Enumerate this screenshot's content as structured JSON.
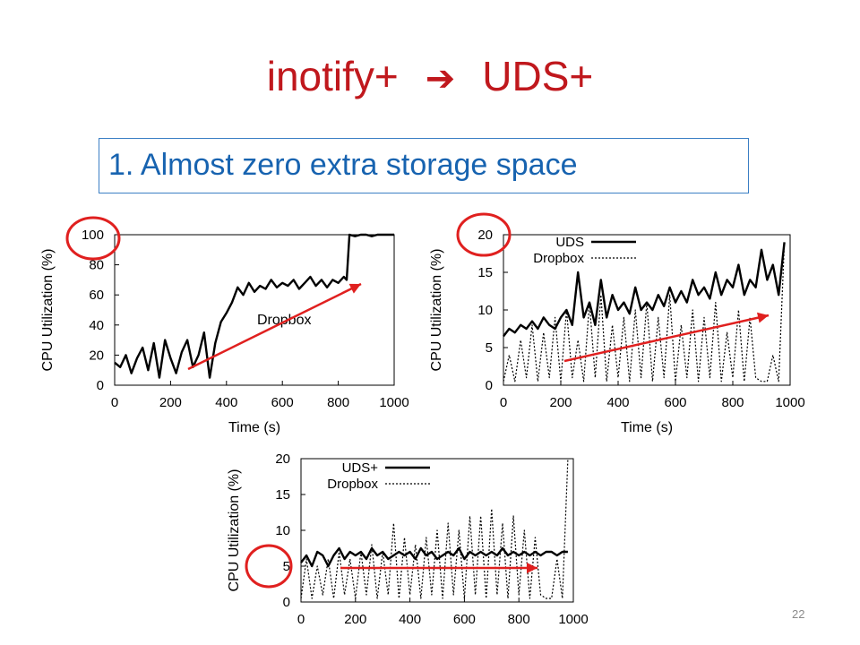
{
  "slide": {
    "title_left": "inotify+",
    "title_arrow": "➔",
    "title_right": "UDS+",
    "point": "1. Almost zero extra storage space",
    "slide_number": "22"
  },
  "colors": {
    "title": "#c0181d",
    "point_text": "#1763b0",
    "box_border": "#3b7fc4",
    "annotation": "#e0201f"
  },
  "chart_data": [
    {
      "type": "line",
      "xlabel": "Time (s)",
      "ylabel": "CPU Utilization (%)",
      "xlim": [
        0,
        1000
      ],
      "ylim": [
        0,
        100
      ],
      "xticks": [
        "0",
        "200",
        "400",
        "600",
        "800",
        "1000"
      ],
      "yticks": [
        "0",
        "20",
        "40",
        "60",
        "80",
        "100"
      ],
      "grid": false,
      "annotation": "Dropbox",
      "highlight": "100",
      "series": [
        {
          "name": "",
          "style": "solid",
          "x": [
            0,
            20,
            40,
            60,
            80,
            100,
            120,
            140,
            160,
            180,
            200,
            220,
            240,
            260,
            280,
            300,
            320,
            340,
            360,
            380,
            400,
            420,
            440,
            460,
            480,
            500,
            520,
            540,
            560,
            580,
            600,
            620,
            640,
            660,
            680,
            700,
            720,
            740,
            760,
            780,
            800,
            820,
            830,
            840,
            860,
            880,
            900,
            920,
            940,
            960,
            980,
            1000
          ],
          "y": [
            15,
            12,
            20,
            8,
            18,
            25,
            10,
            28,
            5,
            30,
            18,
            8,
            22,
            30,
            12,
            20,
            35,
            5,
            28,
            42,
            48,
            55,
            65,
            60,
            68,
            62,
            66,
            64,
            70,
            65,
            68,
            66,
            70,
            64,
            68,
            72,
            66,
            70,
            65,
            70,
            68,
            72,
            70,
            100,
            99,
            100,
            100,
            99,
            100,
            100,
            100,
            100
          ]
        }
      ]
    },
    {
      "type": "line",
      "xlabel": "Time (s)",
      "ylabel": "CPU Utilization (%)",
      "xlim": [
        0,
        1000
      ],
      "ylim": [
        0,
        20
      ],
      "xticks": [
        "0",
        "200",
        "400",
        "600",
        "800",
        "1000"
      ],
      "yticks": [
        "0",
        "5",
        "10",
        "15",
        "20"
      ],
      "grid": false,
      "legend_position": "top-left",
      "highlight": "20",
      "series": [
        {
          "name": "UDS",
          "style": "solid",
          "x": [
            0,
            20,
            40,
            60,
            80,
            100,
            120,
            140,
            160,
            180,
            200,
            220,
            240,
            260,
            280,
            300,
            320,
            340,
            360,
            380,
            400,
            420,
            440,
            460,
            480,
            500,
            520,
            540,
            560,
            580,
            600,
            620,
            640,
            660,
            680,
            700,
            720,
            740,
            760,
            780,
            800,
            820,
            840,
            860,
            880,
            900,
            920,
            940,
            960,
            980
          ],
          "y": [
            6.5,
            7.5,
            7,
            8,
            7.5,
            8.5,
            7.5,
            9,
            8,
            7.5,
            9,
            10,
            8,
            15,
            9,
            11,
            8,
            14,
            9,
            12,
            10,
            11,
            9.5,
            13,
            10,
            11,
            10,
            12,
            10.5,
            13,
            11,
            12.5,
            11,
            14,
            12,
            13,
            11.5,
            15,
            12,
            14,
            13,
            16,
            12,
            14,
            13,
            18,
            14,
            16,
            12,
            19
          ]
        },
        {
          "name": "Dropbox",
          "style": "dotted",
          "x": [
            0,
            20,
            40,
            60,
            80,
            100,
            120,
            140,
            160,
            180,
            200,
            220,
            240,
            260,
            280,
            300,
            320,
            340,
            360,
            380,
            400,
            420,
            440,
            460,
            480,
            500,
            520,
            540,
            560,
            580,
            600,
            620,
            640,
            660,
            680,
            700,
            720,
            740,
            760,
            780,
            800,
            820,
            840,
            860,
            880,
            900,
            920,
            940,
            960,
            980
          ],
          "y": [
            0.5,
            4,
            0.5,
            6,
            1,
            8,
            0.5,
            7,
            1,
            9,
            0.5,
            10,
            1,
            6,
            0.5,
            11,
            1,
            12,
            0.5,
            8,
            1,
            9,
            0.5,
            10,
            1,
            11,
            0.5,
            9,
            1,
            12,
            0.5,
            8,
            1,
            10,
            0.5,
            9,
            1,
            11,
            0.5,
            7,
            1,
            10,
            0.5,
            9,
            1,
            0.5,
            0.5,
            4,
            0.5,
            19
          ]
        }
      ]
    },
    {
      "type": "line",
      "xlabel": "",
      "ylabel": "CPU Utilization (%)",
      "xlim": [
        0,
        1000
      ],
      "ylim": [
        0,
        20
      ],
      "xticks": [
        "0",
        "200",
        "400",
        "600",
        "800",
        "1000"
      ],
      "yticks": [
        "0",
        "5",
        "10",
        "15",
        "20"
      ],
      "grid": false,
      "legend_position": "top-left",
      "highlight": "5",
      "series": [
        {
          "name": "UDS+",
          "style": "solid",
          "x": [
            0,
            20,
            40,
            60,
            80,
            100,
            120,
            140,
            160,
            180,
            200,
            220,
            240,
            260,
            280,
            300,
            320,
            340,
            360,
            380,
            400,
            420,
            440,
            460,
            480,
            500,
            520,
            540,
            560,
            580,
            600,
            620,
            640,
            660,
            680,
            700,
            720,
            740,
            760,
            780,
            800,
            820,
            840,
            860,
            880,
            900,
            920,
            940,
            960,
            980
          ],
          "y": [
            5.5,
            6.5,
            5,
            7,
            6.5,
            5,
            6.5,
            7.5,
            6,
            7,
            6.5,
            7,
            6,
            7.5,
            6.5,
            7,
            6,
            6.5,
            7,
            6.5,
            7,
            6,
            7.5,
            6.5,
            7,
            6,
            6.5,
            7,
            6.5,
            7.5,
            6,
            7,
            6.5,
            7,
            6.5,
            7,
            6.5,
            7.5,
            6.5,
            7,
            6.5,
            7,
            6.5,
            7,
            6.5,
            7,
            7,
            6.5,
            7,
            7
          ]
        },
        {
          "name": "Dropbox",
          "style": "dotted",
          "x": [
            0,
            20,
            40,
            60,
            80,
            100,
            120,
            140,
            160,
            180,
            200,
            220,
            240,
            260,
            280,
            300,
            320,
            340,
            360,
            380,
            400,
            420,
            440,
            460,
            480,
            500,
            520,
            540,
            560,
            580,
            600,
            620,
            640,
            660,
            680,
            700,
            720,
            740,
            760,
            780,
            800,
            820,
            840,
            860,
            880,
            900,
            920,
            940,
            960,
            980
          ],
          "y": [
            0.5,
            6,
            0.5,
            5,
            1,
            6,
            0.5,
            7,
            1,
            6,
            0.5,
            7,
            1,
            8,
            0.5,
            7,
            1,
            11,
            0.5,
            9,
            1,
            8,
            0.5,
            9,
            1,
            10,
            0.5,
            11,
            1,
            10,
            0.5,
            12,
            1,
            12,
            0.5,
            13,
            1,
            11,
            0.5,
            12,
            1,
            10,
            0.5,
            9,
            1,
            0.5,
            0.5,
            6,
            0.5,
            20
          ]
        }
      ]
    }
  ]
}
